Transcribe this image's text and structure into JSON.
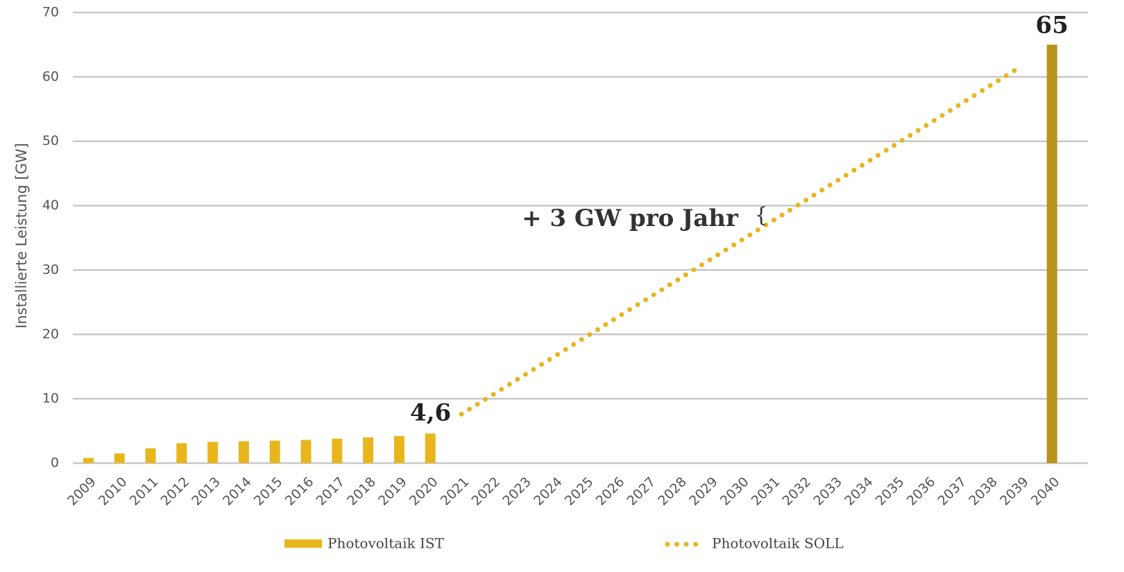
{
  "chart_data": {
    "type": "bar_line",
    "y_label": "Installierte Leistung [GW]",
    "categories": [
      "2009",
      "2010",
      "2011",
      "2012",
      "2013",
      "2014",
      "2015",
      "2016",
      "2017",
      "2018",
      "2019",
      "2020",
      "2021",
      "2022",
      "2023",
      "2024",
      "2025",
      "2026",
      "2027",
      "2028",
      "2029",
      "2030",
      "2031",
      "2032",
      "2033",
      "2034",
      "2035",
      "2036",
      "2037",
      "2038",
      "2039",
      "2040"
    ],
    "series": [
      {
        "name": "Photovoltaik IST",
        "type": "bar",
        "color": "#e8b61c",
        "values": [
          0.8,
          1.5,
          2.3,
          3.1,
          3.3,
          3.4,
          3.5,
          3.6,
          3.8,
          4.0,
          4.2,
          4.6,
          null,
          null,
          null,
          null,
          null,
          null,
          null,
          null,
          null,
          null,
          null,
          null,
          null,
          null,
          null,
          null,
          null,
          null,
          null,
          65
        ],
        "colors": [
          "#e8b61c",
          "#e8b61c",
          "#e8b61c",
          "#e8b61c",
          "#e8b61c",
          "#e8b61c",
          "#e8b61c",
          "#e8b61c",
          "#e8b61c",
          "#e8b61c",
          "#e8b61c",
          "#e8b61c",
          null,
          null,
          null,
          null,
          null,
          null,
          null,
          null,
          null,
          null,
          null,
          null,
          null,
          null,
          null,
          null,
          null,
          null,
          null,
          "#b8921d"
        ],
        "value_labels": [
          null,
          null,
          null,
          null,
          null,
          null,
          null,
          null,
          null,
          null,
          null,
          "4,6",
          null,
          null,
          null,
          null,
          null,
          null,
          null,
          null,
          null,
          null,
          null,
          null,
          null,
          null,
          null,
          null,
          null,
          null,
          null,
          "65"
        ]
      },
      {
        "name": "Photovoltaik SOLL",
        "type": "line",
        "style": "dotted",
        "color": "#e8b61c",
        "values": [
          null,
          null,
          null,
          null,
          null,
          null,
          null,
          null,
          null,
          null,
          null,
          null,
          7.6,
          10.6,
          13.6,
          16.6,
          19.6,
          22.6,
          25.6,
          28.6,
          31.6,
          34.6,
          37.6,
          40.6,
          43.6,
          46.6,
          49.6,
          52.6,
          55.6,
          58.6,
          61.6,
          null
        ]
      }
    ],
    "annotation": "+ 3 GW pro Jahr",
    "annotation_brace": "{",
    "ylim": [
      0,
      70
    ],
    "yticks": [
      0,
      10,
      20,
      30,
      40,
      50,
      60,
      70
    ],
    "grid": true
  }
}
